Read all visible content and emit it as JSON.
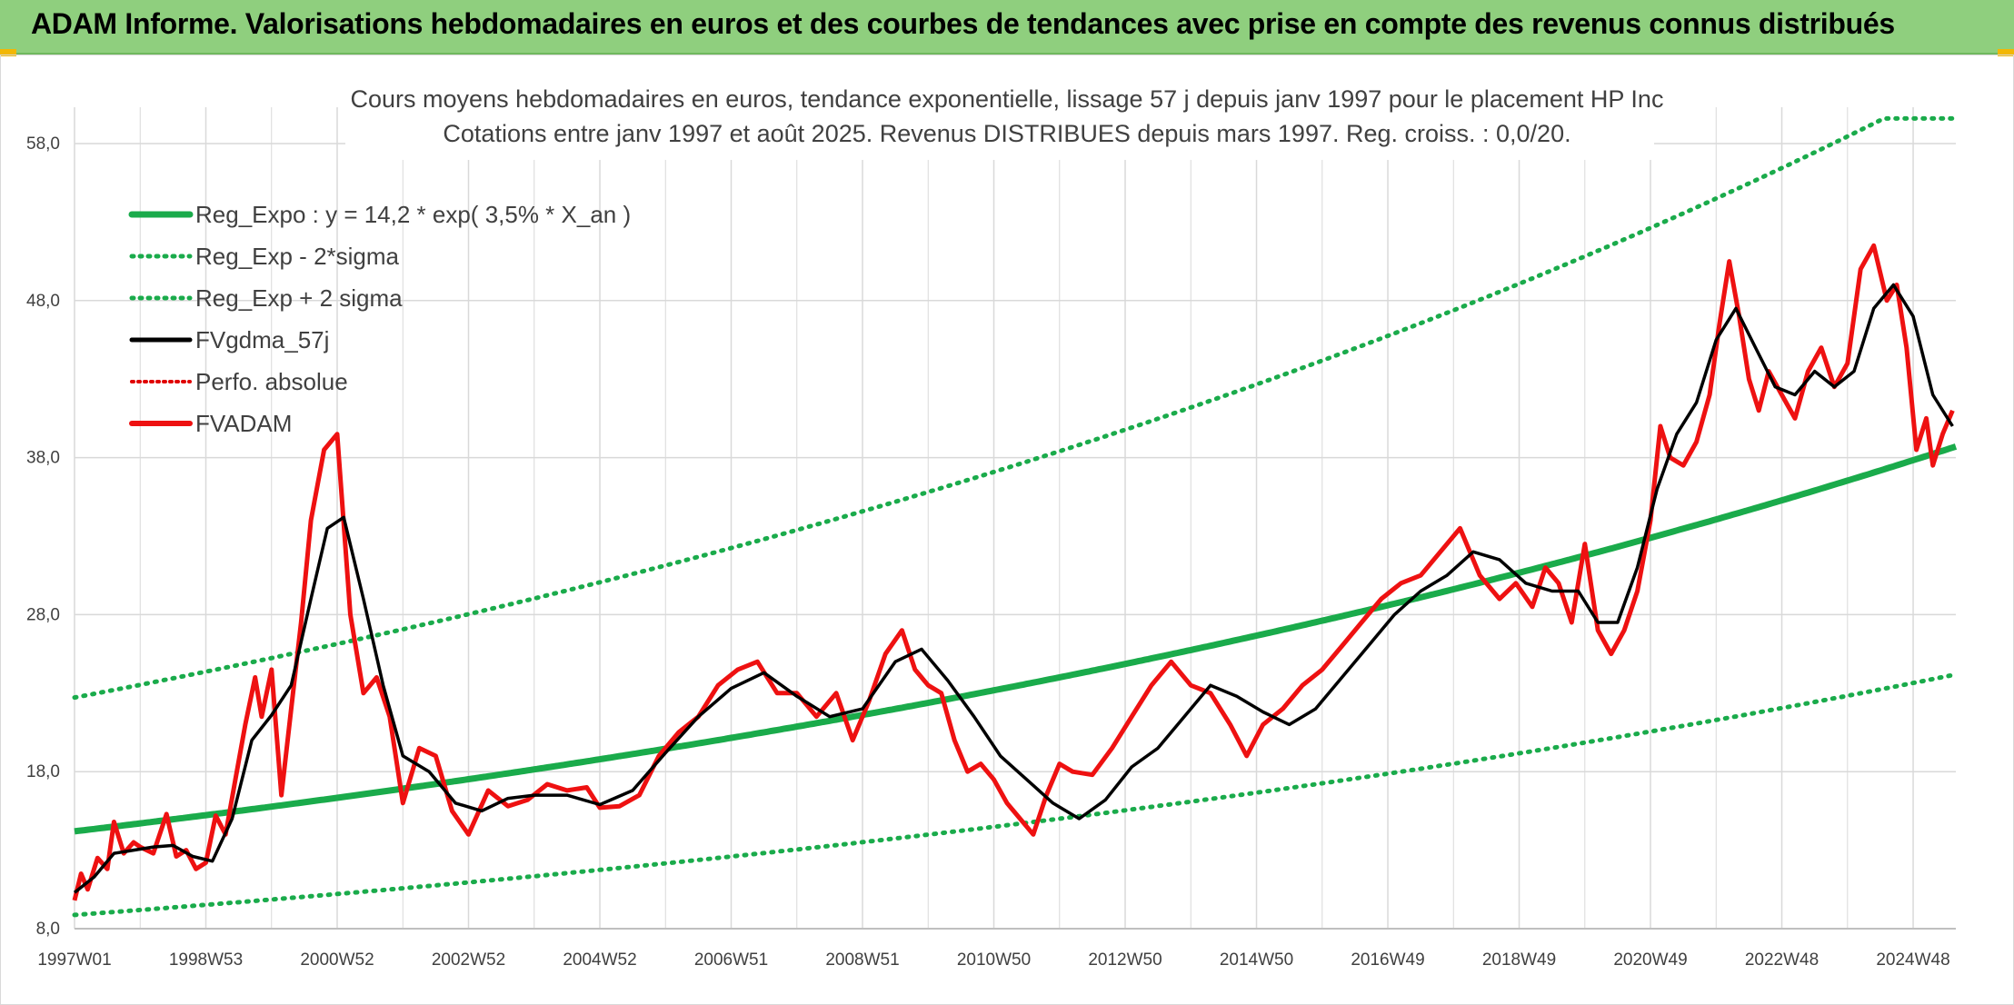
{
  "banner": {
    "title": "ADAM Informe. Valorisations hebdomadaires en euros et des courbes de tendances avec prise en compte des revenus connus distribués"
  },
  "colors": {
    "banner_bg": "#8fcf7e",
    "regression": "#1aab4b",
    "sigma_band": "#1aab4b",
    "smoothed": "#000000",
    "perfo": "#e00000",
    "price": "#ee1111",
    "grid": "#d9d9d9"
  },
  "chart_data": {
    "type": "line",
    "title_lines": [
      "Cours moyens hebdomadaires en euros, tendance exponentielle, lissage 57 j depuis janv 1997 pour le placement HP Inc",
      "Cotations entre janv 1997 et août 2025. Revenus DISTRIBUES depuis mars 1997. Reg. croiss. : 0,0/20."
    ],
    "x_ticks": [
      "1997W01",
      "1998W53",
      "2000W52",
      "2002W52",
      "2004W52",
      "2006W51",
      "2008W51",
      "2010W50",
      "2012W50",
      "2014W50",
      "2016W49",
      "2018W49",
      "2020W49",
      "2022W48",
      "2024W48"
    ],
    "xlim": [
      1997.0,
      2025.65
    ],
    "y_ticks": [
      "8,0",
      "18,0",
      "28,0",
      "38,0",
      "48,0",
      "58,0"
    ],
    "ylim": [
      8,
      58
    ],
    "grid": true,
    "legend_position": "top-left",
    "regression": {
      "a": 14.2,
      "rate": 0.035,
      "x0": 1997.0
    },
    "sigma_factor": 1.6,
    "legend": [
      {
        "label": "Reg_Expo : y = 14,2 * exp( 3,5% *  X_an )",
        "style": "solid-green"
      },
      {
        "label": "Reg_Exp - 2*sigma",
        "style": "dotted-green"
      },
      {
        "label": "Reg_Exp + 2 sigma",
        "style": "dotted-green"
      },
      {
        "label": "FVgdma_57j",
        "style": "solid-black"
      },
      {
        "label": "Perfo. absolue",
        "style": "dotted-red"
      },
      {
        "label": "FVADAM",
        "style": "solid-red"
      }
    ],
    "series": [
      {
        "name": "FVADAM",
        "x": [
          1997.0,
          1997.1,
          1997.2,
          1997.35,
          1997.5,
          1997.6,
          1997.75,
          1997.9,
          1998.0,
          1998.2,
          1998.4,
          1998.55,
          1998.7,
          1998.85,
          1999.0,
          1999.15,
          1999.3,
          1999.45,
          1999.6,
          1999.75,
          1999.85,
          2000.0,
          2000.15,
          2000.3,
          2000.45,
          2000.6,
          2000.8,
          2001.0,
          2001.2,
          2001.4,
          2001.6,
          2001.8,
          2002.0,
          2002.25,
          2002.5,
          2002.75,
          2003.0,
          2003.3,
          2003.6,
          2003.9,
          2004.2,
          2004.5,
          2004.8,
          2005.0,
          2005.3,
          2005.6,
          2005.9,
          2006.2,
          2006.5,
          2006.8,
          2007.1,
          2007.4,
          2007.7,
          2008.0,
          2008.3,
          2008.6,
          2008.85,
          2009.1,
          2009.35,
          2009.6,
          2009.8,
          2010.0,
          2010.2,
          2010.4,
          2010.6,
          2010.8,
          2011.0,
          2011.2,
          2011.4,
          2011.6,
          2011.8,
          2012.0,
          2012.2,
          2012.5,
          2012.8,
          2013.1,
          2013.4,
          2013.7,
          2014.0,
          2014.3,
          2014.6,
          2014.85,
          2015.1,
          2015.4,
          2015.7,
          2016.0,
          2016.3,
          2016.6,
          2016.9,
          2017.2,
          2017.5,
          2017.8,
          2018.1,
          2018.4,
          2018.7,
          2018.95,
          2019.2,
          2019.4,
          2019.6,
          2019.8,
          2020.0,
          2020.2,
          2020.4,
          2020.6,
          2020.8,
          2021.0,
          2021.15,
          2021.3,
          2021.5,
          2021.7,
          2021.9,
          2022.05,
          2022.2,
          2022.35,
          2022.5,
          2022.65,
          2022.8,
          2023.0,
          2023.2,
          2023.4,
          2023.6,
          2023.8,
          2024.0,
          2024.2,
          2024.4,
          2024.6,
          2024.75,
          2024.9,
          2025.05,
          2025.2,
          2025.3,
          2025.45,
          2025.6
        ],
        "y": [
          9.8,
          11.5,
          10.5,
          12.5,
          11.8,
          14.8,
          12.8,
          13.5,
          13.2,
          12.8,
          15.3,
          12.6,
          13.0,
          11.8,
          12.2,
          15.2,
          14.0,
          17.5,
          21.0,
          24.0,
          21.5,
          24.5,
          16.5,
          22.0,
          27.5,
          34.0,
          38.5,
          39.5,
          28.0,
          23.0,
          24.0,
          21.5,
          16.0,
          19.5,
          19.0,
          15.5,
          14.0,
          16.8,
          15.8,
          16.2,
          17.2,
          16.8,
          17.0,
          15.7,
          15.8,
          16.5,
          19.0,
          20.5,
          21.5,
          23.5,
          24.5,
          25.0,
          23.0,
          23.0,
          21.5,
          23.0,
          20.0,
          22.5,
          25.5,
          27.0,
          24.5,
          23.5,
          23.0,
          20.0,
          18.0,
          18.5,
          17.5,
          16.0,
          15.0,
          14.0,
          16.5,
          18.5,
          18.0,
          17.8,
          19.5,
          21.5,
          23.5,
          25.0,
          23.5,
          23.0,
          21.0,
          19.0,
          21.0,
          22.0,
          23.5,
          24.5,
          26.0,
          27.5,
          29.0,
          30.0,
          30.5,
          32.0,
          33.5,
          30.5,
          29.0,
          30.0,
          28.5,
          31.0,
          30.0,
          27.5,
          32.5,
          27.0,
          25.5,
          27.0,
          29.5,
          34.0,
          40.0,
          38.0,
          37.5,
          39.0,
          42.0,
          46.5,
          50.5,
          47.0,
          43.0,
          41.0,
          43.5,
          42.0,
          40.5,
          43.5,
          45.0,
          42.5,
          44.0,
          50.0,
          51.5,
          48.0,
          49.0,
          45.0,
          38.5,
          40.5,
          37.5,
          39.5,
          41.0
        ]
      },
      {
        "name": "FVgdma_57j",
        "x": [
          1997.0,
          1997.3,
          1997.6,
          1997.9,
          1998.2,
          1998.5,
          1998.8,
          1999.1,
          1999.4,
          1999.7,
          2000.0,
          2000.3,
          2000.6,
          2000.85,
          2001.1,
          2001.4,
          2001.7,
          2002.0,
          2002.4,
          2002.8,
          2003.2,
          2003.6,
          2004.0,
          2004.5,
          2005.0,
          2005.5,
          2006.0,
          2006.5,
          2007.0,
          2007.5,
          2008.0,
          2008.5,
          2009.0,
          2009.5,
          2009.9,
          2010.3,
          2010.7,
          2011.1,
          2011.5,
          2011.9,
          2012.3,
          2012.7,
          2013.1,
          2013.5,
          2013.9,
          2014.3,
          2014.7,
          2015.1,
          2015.5,
          2015.9,
          2016.3,
          2016.7,
          2017.1,
          2017.5,
          2017.9,
          2018.3,
          2018.7,
          2019.1,
          2019.5,
          2019.9,
          2020.2,
          2020.5,
          2020.8,
          2021.1,
          2021.4,
          2021.7,
          2022.0,
          2022.3,
          2022.6,
          2022.9,
          2023.2,
          2023.5,
          2023.8,
          2024.1,
          2024.4,
          2024.7,
          2025.0,
          2025.3,
          2025.6
        ],
        "y": [
          10.3,
          11.3,
          12.8,
          13.0,
          13.2,
          13.3,
          12.6,
          12.3,
          15.0,
          20.0,
          21.6,
          23.5,
          29.0,
          33.5,
          34.2,
          29.0,
          23.5,
          19.0,
          18.0,
          16.0,
          15.5,
          16.3,
          16.5,
          16.5,
          15.9,
          16.8,
          19.2,
          21.5,
          23.3,
          24.3,
          22.8,
          21.5,
          22.0,
          25.0,
          25.8,
          23.8,
          21.5,
          19.0,
          17.5,
          16.0,
          15.0,
          16.2,
          18.3,
          19.5,
          21.5,
          23.5,
          22.8,
          21.8,
          21.0,
          22.0,
          24.0,
          26.0,
          28.0,
          29.5,
          30.5,
          32.0,
          31.5,
          30.0,
          29.5,
          29.5,
          27.5,
          27.5,
          31.0,
          36.0,
          39.5,
          41.5,
          45.5,
          47.5,
          45.0,
          42.5,
          42.0,
          43.5,
          42.5,
          43.5,
          47.5,
          49.0,
          47.0,
          42.0,
          40.0
        ]
      }
    ]
  }
}
